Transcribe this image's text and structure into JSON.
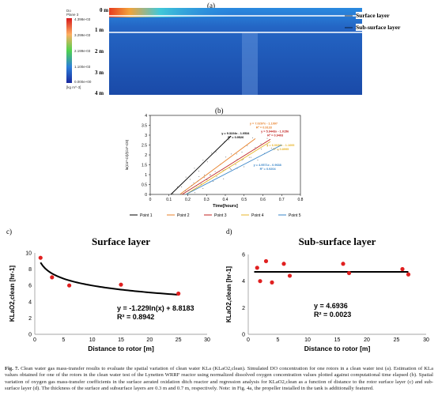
{
  "panel_a": {
    "label": "(a)",
    "colorbar": {
      "title_lines": [
        "Do",
        "Plane 3"
      ],
      "ticks": [
        "4.398e-03",
        "3.299e-03",
        "2.199e-03",
        "1.100e-03",
        "0.000e+00"
      ],
      "unit": "[kg m^-3]"
    },
    "depth_labels": [
      "0 m",
      "1 m",
      "2 m",
      "3 m",
      "4 m"
    ],
    "layer_labels": {
      "surface": "Surface layer",
      "subsurface": "Sub-surface layer"
    },
    "colors": {
      "deep": "#1a4fb0",
      "top": "#1e6fd6",
      "surface_hot": "#e63b1e"
    }
  },
  "panel_b": {
    "label": "(b)",
    "ylabel": "ln(Cs*-Ct)/(Cs*-C0)",
    "xlabel": "Time[hours]",
    "legend": [
      "Point 1",
      "Point 2",
      "Point 3",
      "Point 4",
      "Point 5"
    ],
    "colors": [
      "#000000",
      "#e8812a",
      "#c0211f",
      "#e8b52a",
      "#3a86c8"
    ]
  },
  "panel_c": {
    "label": "c)",
    "title": "Surface layer",
    "ylabel": "KLaO2,clean [hr-1]",
    "xlabel": "Distance to rotor [m]",
    "equation": "y = -1.229ln(x) + 8.8183",
    "r2": "R² = 0.8942"
  },
  "panel_d": {
    "label": "d)",
    "title": "Sub-surface layer",
    "ylabel": "KLaO2,clean [hr-1]",
    "xlabel": "Distance to rotor [m]",
    "equation": "y = 4.6936",
    "r2": "R² = 0.0023"
  },
  "chart_data": [
    {
      "type": "line",
      "id": "b",
      "xlabel": "Time[hours]",
      "ylabel": "ln(Cs*-Ct)/(Cs*-C0)",
      "xlim": [
        0,
        0.8
      ],
      "ylim": [
        0,
        4
      ],
      "xticks": [
        0,
        0.1,
        0.2,
        0.3,
        0.4,
        0.5,
        0.6,
        0.7,
        0.8
      ],
      "yticks": [
        0,
        0.5,
        1,
        1.5,
        2,
        2.5,
        3,
        3.5,
        4
      ],
      "series": [
        {
          "name": "Point 1",
          "slope": 9.3224,
          "intercept": -1.0534,
          "x_range": [
            0.11,
            0.43
          ],
          "equation": "y = 9.3224x - 1.0534",
          "r2": "R² = 0.9526"
        },
        {
          "name": "Point 2",
          "slope": 7.0297,
          "intercept": -1.1097,
          "x_range": [
            0.16,
            0.56
          ],
          "equation": "y = 7.0297x - 1.1097",
          "r2": "R² = 0.9133"
        },
        {
          "name": "Point 3",
          "slope": 5.9443,
          "intercept": -1.0156,
          "x_range": [
            0.17,
            0.64
          ],
          "equation": "y = 5.9443x - 1.0156",
          "r2": "R² = 0.9403"
        },
        {
          "name": "Point 4",
          "slope": 6.0036,
          "intercept": -1.1695,
          "x_range": [
            0.19,
            0.64
          ],
          "equation": "y = 6.0036x - 1.1695",
          "r2": "R² = 0.8995"
        },
        {
          "name": "Point 5",
          "slope": 4.9571,
          "intercept": -0.9638,
          "x_range": [
            0.19,
            0.7
          ],
          "equation": "y = 4.9571x - 0.9638",
          "r2": "R² = 0.9204"
        }
      ]
    },
    {
      "type": "scatter",
      "id": "c",
      "title": "Surface layer",
      "xlabel": "Distance to rotor [m]",
      "ylabel": "KLaO2,clean [hr-1]",
      "xlim": [
        0,
        30
      ],
      "ylim": [
        0,
        10
      ],
      "xticks": [
        0,
        5,
        10,
        15,
        20,
        25,
        30
      ],
      "yticks": [
        0,
        2,
        4,
        6,
        8,
        10
      ],
      "points": [
        [
          1,
          9.4
        ],
        [
          3,
          7.0
        ],
        [
          6,
          6.0
        ],
        [
          15,
          6.1
        ],
        [
          25,
          5.0
        ]
      ],
      "fit": {
        "kind": "log",
        "a": -1.229,
        "b": 8.8183,
        "x_range": [
          1,
          25
        ]
      }
    },
    {
      "type": "scatter",
      "id": "d",
      "title": "Sub-surface layer",
      "xlabel": "Distance to rotor [m]",
      "ylabel": "KLaO2,clean [hr-1]",
      "xlim": [
        0,
        30
      ],
      "ylim": [
        0,
        6
      ],
      "xticks": [
        0,
        5,
        10,
        15,
        20,
        25,
        30
      ],
      "yticks": [
        0,
        2,
        4,
        6
      ],
      "points": [
        [
          1.5,
          5.0
        ],
        [
          2,
          4.0
        ],
        [
          3,
          5.5
        ],
        [
          4,
          3.9
        ],
        [
          6,
          5.3
        ],
        [
          7,
          4.4
        ],
        [
          16,
          5.3
        ],
        [
          17,
          4.6
        ],
        [
          26,
          4.9
        ],
        [
          27,
          4.5
        ]
      ],
      "fit": {
        "kind": "const",
        "b": 4.6936,
        "x_range": [
          1,
          27
        ]
      }
    }
  ],
  "caption": {
    "fig_label": "Fig. 7.",
    "text": "Clean water gas mass-transfer results to evaluate the spatial variation of clean water KLa (KLaO2,clean). Simulated DO concentration for one rotors in a clean water test (a). Estimation of KLa values obtained for one of the rotors in the clean water test of the Lynetten WRRF reactor using normalized dissolved oxygen concentration values plotted against computational time elapsed (b). Spatial variation of oxygen gas mass-transfer coefficients in the surface aerated oxidation ditch reactor and regression analysis for KLaO2,clean as a function of distance to the rotor surface layer (c) and sub-surface layer (d). The thickness of the surface and subsurface layers are 0.3 m and 0.7 m, respectively. Note: in Fig. 4a, the propeller installed in the tank is additionally featured."
  }
}
